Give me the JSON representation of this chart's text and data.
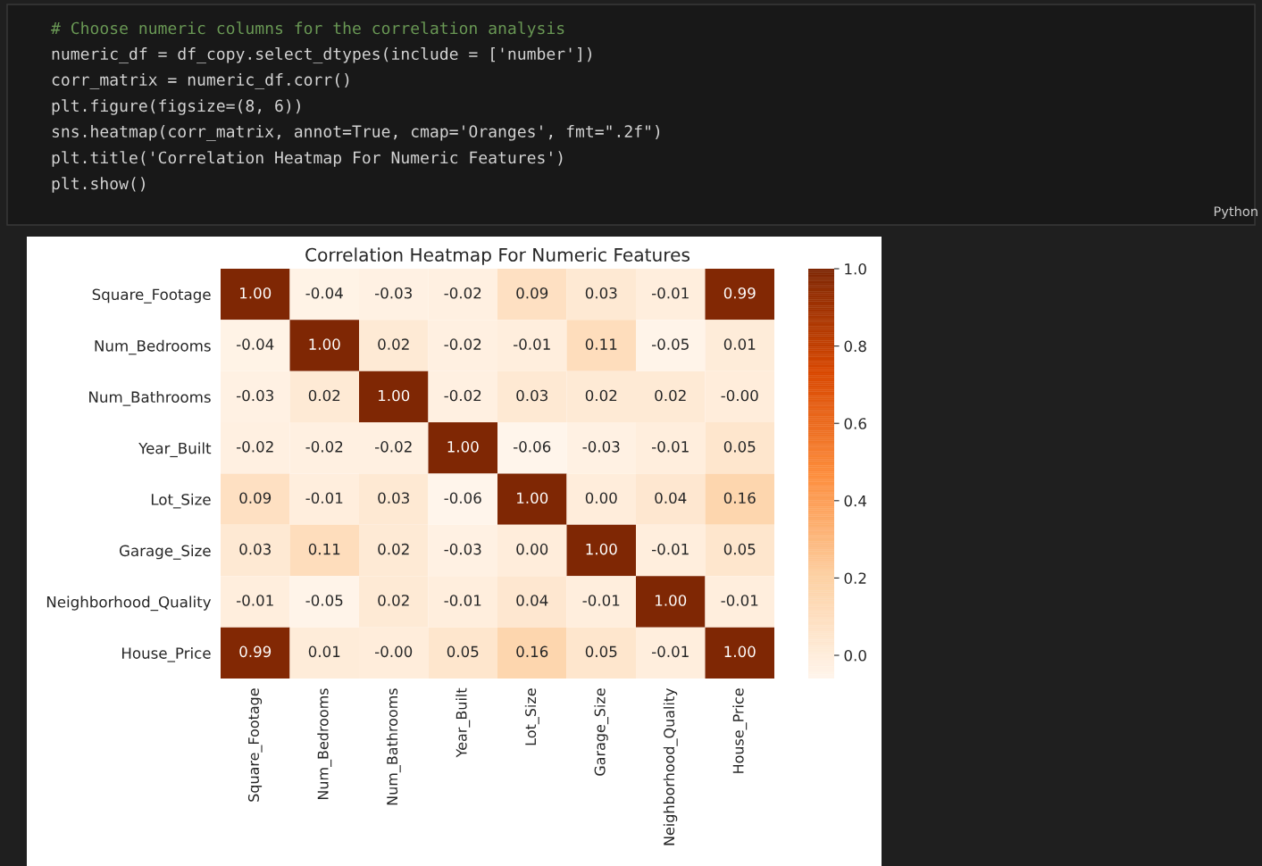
{
  "chart_data": {
    "type": "heatmap",
    "title": "Correlation Heatmap For Numeric Features",
    "annotations": [
      "# Choose numeric columns for the correlation analysis",
      "numeric_df = df_copy.select_dtypes(include = ['number'])",
      "corr_matrix = numeric_df.corr()",
      "plt.figure(figsize=(8, 6))",
      "sns.heatmap(corr_matrix, annot=True, cmap='Oranges', fmt=\".2f\")",
      "plt.title('Correlation Heatmap For Numeric Features')",
      "plt.show()",
      "Python"
    ],
    "categories": [
      "Square_Footage",
      "Num_Bedrooms",
      "Num_Bathrooms",
      "Year_Built",
      "Lot_Size",
      "Garage_Size",
      "Neighborhood_Quality",
      "House_Price"
    ],
    "y_categories": [
      "Square_Footage",
      "Num_Bedrooms",
      "Num_Bathrooms",
      "Year_Built",
      "Lot_Size",
      "Garage_Size",
      "Neighborhood_Quality",
      "House_Price"
    ],
    "cells": [
      [
        1.0,
        -0.04,
        -0.03,
        -0.02,
        0.09,
        0.03,
        -0.01,
        0.99
      ],
      [
        -0.04,
        1.0,
        0.02,
        -0.02,
        -0.01,
        0.11,
        -0.05,
        0.01
      ],
      [
        -0.03,
        0.02,
        1.0,
        -0.02,
        0.03,
        0.02,
        0.02,
        0.0
      ],
      [
        -0.02,
        -0.02,
        -0.02,
        1.0,
        -0.06,
        -0.03,
        -0.01,
        0.05
      ],
      [
        0.09,
        -0.01,
        0.03,
        -0.06,
        1.0,
        0.0,
        0.04,
        0.16
      ],
      [
        0.03,
        0.11,
        0.02,
        -0.03,
        0.0,
        1.0,
        -0.01,
        0.05
      ],
      [
        -0.01,
        -0.05,
        0.02,
        -0.01,
        0.04,
        -0.01,
        1.0,
        -0.01
      ],
      [
        0.99,
        0.01,
        0.0,
        0.05,
        0.16,
        0.05,
        -0.01,
        1.0
      ]
    ],
    "cell_labels": [
      [
        "1.00",
        "-0.04",
        "-0.03",
        "-0.02",
        "0.09",
        "0.03",
        "-0.01",
        "0.99"
      ],
      [
        "-0.04",
        "1.00",
        "0.02",
        "-0.02",
        "-0.01",
        "0.11",
        "-0.05",
        "0.01"
      ],
      [
        "-0.03",
        "0.02",
        "1.00",
        "-0.02",
        "0.03",
        "0.02",
        "0.02",
        "-0.00"
      ],
      [
        "-0.02",
        "-0.02",
        "-0.02",
        "1.00",
        "-0.06",
        "-0.03",
        "-0.01",
        "0.05"
      ],
      [
        "0.09",
        "-0.01",
        "0.03",
        "-0.06",
        "1.00",
        "0.00",
        "0.04",
        "0.16"
      ],
      [
        "0.03",
        "0.11",
        "0.02",
        "-0.03",
        "0.00",
        "1.00",
        "-0.01",
        "0.05"
      ],
      [
        "-0.01",
        "-0.05",
        "0.02",
        "-0.01",
        "0.04",
        "-0.01",
        "1.00",
        "-0.01"
      ],
      [
        "0.99",
        "0.01",
        "-0.00",
        "0.05",
        "0.16",
        "0.05",
        "-0.01",
        "1.00"
      ]
    ],
    "colors": [
      "#fff5eb",
      "#fdd0a2",
      "#fd8d3c",
      "#d94801",
      "#7f2704"
    ],
    "clim": [
      -0.06,
      1.0
    ],
    "cticks": [
      {
        "value": 0,
        "label": "0.0"
      },
      {
        "value": 0.2,
        "label": "0.2"
      },
      {
        "value": 0.4,
        "label": "0.4"
      },
      {
        "value": 0.6,
        "label": "0.6"
      },
      {
        "value": 0.8,
        "label": "0.8"
      },
      {
        "value": 1.0,
        "label": "1.0"
      }
    ]
  }
}
